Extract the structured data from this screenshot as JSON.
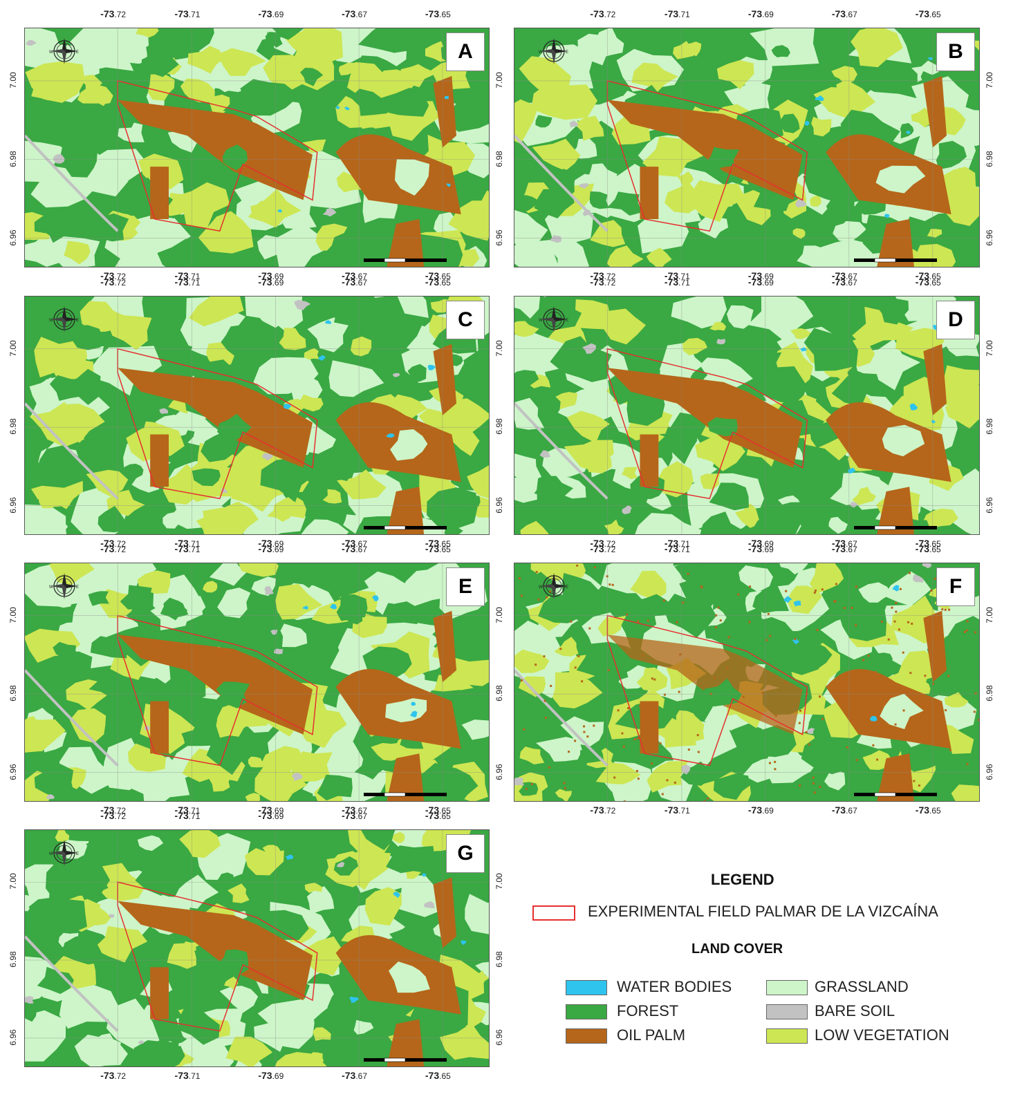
{
  "panels": [
    {
      "label": "A"
    },
    {
      "label": "B"
    },
    {
      "label": "C"
    },
    {
      "label": "D"
    },
    {
      "label": "E"
    },
    {
      "label": "F"
    },
    {
      "label": "G"
    }
  ],
  "axes": {
    "x_ticks": [
      {
        "major": "-73",
        "minor": ".72"
      },
      {
        "major": "-73",
        "minor": ".71"
      },
      {
        "major": "-73",
        "minor": ".69"
      },
      {
        "major": "-73",
        "minor": ".67"
      },
      {
        "major": "-73",
        "minor": ".65"
      }
    ],
    "y_ticks": [
      "7.00",
      "6.98",
      "6.96"
    ]
  },
  "colors": {
    "water": "#2ec4ee",
    "forest": "#3aa843",
    "oil_palm": "#b5661a",
    "grassland": "#cdf5c9",
    "bare_soil": "#c2c2c2",
    "low_vegetation": "#cde653",
    "field_outline": "#e53030"
  },
  "legend": {
    "title": "LEGEND",
    "field_label": "EXPERIMENTAL FIELD PALMAR DE LA VIZCAÍNA",
    "land_cover_title": "LAND COVER",
    "items": {
      "water": "WATER BODIES",
      "forest": "FOREST",
      "oil_palm": "OIL PALM",
      "grassland": "GRASSLAND",
      "bare_soil": "BARE SOIL",
      "low_vegetation": "LOW VEGETATION"
    }
  }
}
